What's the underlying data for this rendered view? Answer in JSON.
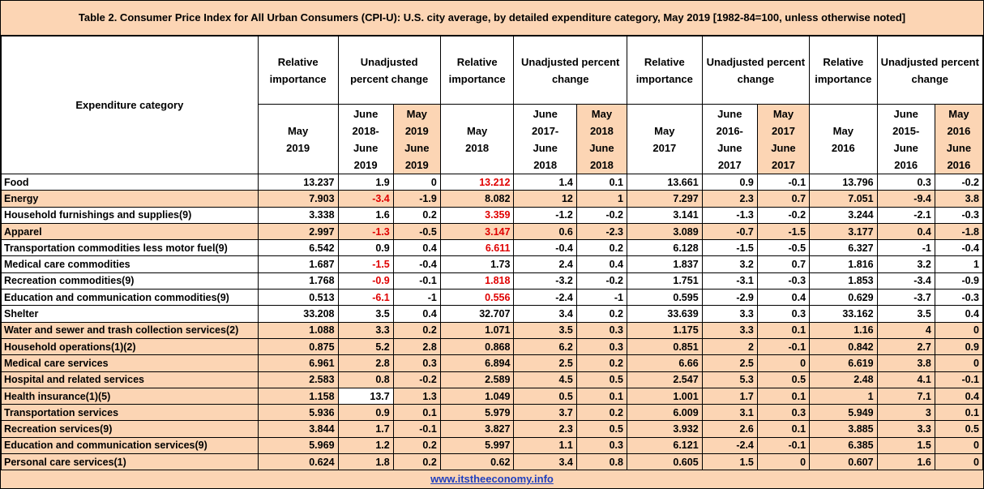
{
  "title": "Table 2. Consumer Price Index for All Urban Consumers (CPI-U): U.S. city average, by detailed expenditure category,  May 2019 [1982-84=100, unless otherwise noted]",
  "header": {
    "category": "Expenditure category",
    "groups": [
      {
        "rel": "Relative importance",
        "chg": "Unadjusted percent change",
        "year": [
          "May",
          "2019"
        ],
        "c1": [
          "June",
          "2018-",
          "June",
          "2019"
        ],
        "c2": [
          "May",
          "2019",
          "June",
          "2019"
        ]
      },
      {
        "rel": "Relative importance",
        "chg": "Unadjusted percent change",
        "year": [
          "May",
          "2018"
        ],
        "c1": [
          "June",
          "2017-",
          "June",
          "2018"
        ],
        "c2": [
          "May",
          "2018",
          "June",
          "2018"
        ]
      },
      {
        "rel": "Relative importance",
        "chg": "Unadjusted percent change",
        "year": [
          "May",
          "2017"
        ],
        "c1": [
          "June",
          "2016-",
          "June",
          "2017"
        ],
        "c2": [
          "May",
          "2017",
          "June",
          "2017"
        ]
      },
      {
        "rel": "Relative importance",
        "chg": "Unadjusted percent change",
        "year": [
          "May",
          "2016"
        ],
        "c1": [
          "June",
          "2015-",
          "June",
          "2016"
        ],
        "c2": [
          "May",
          "2016",
          "June",
          "2016"
        ]
      }
    ]
  },
  "rows": [
    {
      "cat": "Food",
      "v": [
        "13.237",
        "1.9",
        "0",
        "13.212",
        "1.4",
        "0.1",
        "13.661",
        "0.9",
        "-0.1",
        "13.796",
        "0.3",
        "-0.2"
      ]
    },
    {
      "cat": "Energy",
      "v": [
        "7.903",
        "-3.4",
        "-1.9",
        "8.082",
        "12",
        "1",
        "7.297",
        "2.3",
        "0.7",
        "7.051",
        "-9.4",
        "3.8"
      ]
    },
    {
      "cat": "Household furnishings and supplies(9)",
      "v": [
        "3.338",
        "1.6",
        "0.2",
        "3.359",
        "-1.2",
        "-0.2",
        "3.141",
        "-1.3",
        "-0.2",
        "3.244",
        "-2.1",
        "-0.3"
      ]
    },
    {
      "cat": "Apparel",
      "v": [
        "2.997",
        "-1.3",
        "-0.5",
        "3.147",
        "0.6",
        "-2.3",
        "3.089",
        "-0.7",
        "-1.5",
        "3.177",
        "0.4",
        "-1.8"
      ]
    },
    {
      "cat": "Transportation commodities less motor fuel(9)",
      "v": [
        "6.542",
        "0.9",
        "0.4",
        "6.611",
        "-0.4",
        "0.2",
        "6.128",
        "-1.5",
        "-0.5",
        "6.327",
        "-1",
        "-0.4"
      ]
    },
    {
      "cat": "Medical care commodities",
      "v": [
        "1.687",
        "-1.5",
        "-0.4",
        "1.73",
        "2.4",
        "0.4",
        "1.837",
        "3.2",
        "0.7",
        "1.816",
        "3.2",
        "1"
      ]
    },
    {
      "cat": "Recreation commodities(9)",
      "v": [
        "1.768",
        "-0.9",
        "-0.1",
        "1.818",
        "-3.2",
        "-0.2",
        "1.751",
        "-3.1",
        "-0.3",
        "1.853",
        "-3.4",
        "-0.9"
      ]
    },
    {
      "cat": "Education and communication commodities(9)",
      "v": [
        "0.513",
        "-6.1",
        "-1",
        "0.556",
        "-2.4",
        "-1",
        "0.595",
        "-2.9",
        "0.4",
        "0.629",
        "-3.7",
        "-0.3"
      ]
    },
    {
      "cat": "Shelter",
      "v": [
        "33.208",
        "3.5",
        "0.4",
        "32.707",
        "3.4",
        "0.2",
        "33.639",
        "3.3",
        "0.3",
        "33.162",
        "3.5",
        "0.4"
      ]
    },
    {
      "cat": "Water and sewer and trash collection services(2)",
      "v": [
        "1.088",
        "3.3",
        "0.2",
        "1.071",
        "3.5",
        "0.3",
        "1.175",
        "3.3",
        "0.1",
        "1.16",
        "4",
        "0"
      ]
    },
    {
      "cat": "Household operations(1)(2)",
      "v": [
        "0.875",
        "5.2",
        "2.8",
        "0.868",
        "6.2",
        "0.3",
        "0.851",
        "2",
        "-0.1",
        "0.842",
        "2.7",
        "0.9"
      ]
    },
    {
      "cat": "Medical care services",
      "v": [
        "6.961",
        "2.8",
        "0.3",
        "6.894",
        "2.5",
        "0.2",
        "6.66",
        "2.5",
        "0",
        "6.619",
        "3.8",
        "0"
      ]
    },
    {
      "cat": "Hospital and related services",
      "v": [
        "2.583",
        "0.8",
        "-0.2",
        "2.589",
        "4.5",
        "0.5",
        "2.547",
        "5.3",
        "0.5",
        "2.48",
        "4.1",
        "-0.1"
      ]
    },
    {
      "cat": "Health insurance(1)(5)",
      "v": [
        "1.158",
        "13.7",
        "1.3",
        "1.049",
        "0.5",
        "0.1",
        "1.001",
        "1.7",
        "0.1",
        "1",
        "7.1",
        "0.4"
      ]
    },
    {
      "cat": "Transportation services",
      "v": [
        "5.936",
        "0.9",
        "0.1",
        "5.979",
        "3.7",
        "0.2",
        "6.009",
        "3.1",
        "0.3",
        "5.949",
        "3",
        "0.1"
      ]
    },
    {
      "cat": "Recreation services(9)",
      "v": [
        "3.844",
        "1.7",
        "-0.1",
        "3.827",
        "2.3",
        "0.5",
        "3.932",
        "2.6",
        "0.1",
        "3.885",
        "3.3",
        "0.5"
      ]
    },
    {
      "cat": "Education and communication services(9)",
      "v": [
        "5.969",
        "1.2",
        "0.2",
        "5.997",
        "1.1",
        "0.3",
        "6.121",
        "-2.4",
        "-0.1",
        "6.385",
        "1.5",
        "0"
      ]
    },
    {
      "cat": "Personal care services(1)",
      "v": [
        "0.624",
        "1.8",
        "0.2",
        "0.62",
        "3.4",
        "0.8",
        "0.605",
        "1.5",
        "0",
        "0.607",
        "1.6",
        "0"
      ]
    }
  ],
  "styles": {
    "white_rows": [
      0,
      2,
      4,
      5,
      6,
      7,
      8
    ],
    "red_cells": [
      [
        1,
        1
      ],
      [
        3,
        1
      ],
      [
        5,
        1
      ],
      [
        6,
        1
      ],
      [
        7,
        1
      ],
      [
        0,
        3
      ],
      [
        2,
        3
      ],
      [
        3,
        3
      ],
      [
        4,
        3
      ],
      [
        6,
        3
      ],
      [
        7,
        3
      ]
    ],
    "white_box_cells": [
      [
        13,
        1
      ]
    ],
    "colors": {
      "peach": "#fcd5b4",
      "red": "#e00000",
      "link": "#1f3fbf"
    }
  },
  "footer": {
    "link": "www.itstheeconomy.info"
  }
}
